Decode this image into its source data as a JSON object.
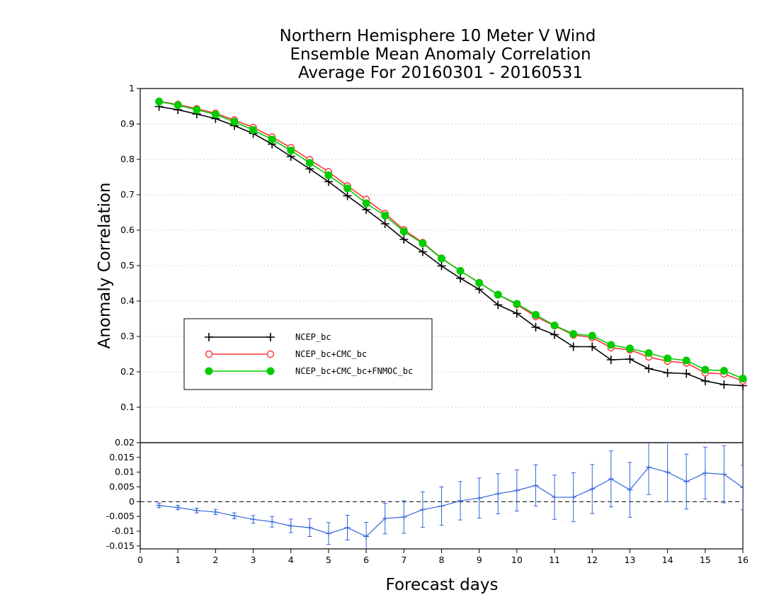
{
  "title": {
    "line1": "Northern Hemisphere 10 Meter V Wind",
    "line2": "Ensemble Mean Anomaly Correlation",
    "line3": "Average For 20160301 - 20160531"
  },
  "colors": {
    "ncep": "#000000",
    "ncep_cmc": "#ff3333",
    "ncep_cmc_fnmoc": "#00cc00",
    "diff": "#3366dd"
  },
  "chart_data": [
    {
      "type": "line",
      "title": "Northern Hemisphere 10 Meter V Wind Ensemble Mean Anomaly Correlation Average For 20160301 - 20160531",
      "xlabel": "Forecast days",
      "ylabel": "Anomaly Correlation",
      "xlim": [
        0,
        16
      ],
      "ylim": [
        0,
        1
      ],
      "yticks": [
        "0.1",
        "0.2",
        "0.3",
        "0.4",
        "0.5",
        "0.6",
        "0.7",
        "0.8",
        "0.9",
        "1"
      ],
      "grid": true,
      "legend_position": "left-middle",
      "x": [
        0.5,
        1,
        1.5,
        2,
        2.5,
        3,
        3.5,
        4,
        4.5,
        5,
        5.5,
        6,
        6.5,
        7,
        7.5,
        8,
        8.5,
        9,
        9.5,
        10,
        10.5,
        11,
        11.5,
        12,
        12.5,
        13,
        13.5,
        14,
        14.5,
        15,
        15.5,
        16
      ],
      "series": [
        {
          "name": "NCEP_bc",
          "marker": "plus",
          "values": [
            0.949,
            0.94,
            0.928,
            0.915,
            0.895,
            0.873,
            0.843,
            0.808,
            0.773,
            0.737,
            0.697,
            0.658,
            0.618,
            0.574,
            0.539,
            0.499,
            0.464,
            0.433,
            0.389,
            0.365,
            0.326,
            0.305,
            0.271,
            0.271,
            0.234,
            0.236,
            0.209,
            0.197,
            0.195,
            0.174,
            0.164,
            0.161
          ]
        },
        {
          "name": "NCEP_bc+CMC_bc",
          "marker": "circle",
          "values": [
            0.964,
            0.955,
            0.943,
            0.93,
            0.911,
            0.89,
            0.863,
            0.833,
            0.799,
            0.765,
            0.725,
            0.687,
            0.647,
            0.601,
            0.565,
            0.521,
            0.485,
            0.452,
            0.418,
            0.39,
            0.356,
            0.33,
            0.304,
            0.297,
            0.268,
            0.262,
            0.242,
            0.23,
            0.225,
            0.197,
            0.194,
            0.174
          ]
        },
        {
          "name": "NCEP_bc+CMC_bc+FNMOC_bc",
          "marker": "dot",
          "values": [
            0.963,
            0.953,
            0.94,
            0.927,
            0.906,
            0.883,
            0.856,
            0.825,
            0.79,
            0.755,
            0.718,
            0.676,
            0.641,
            0.596,
            0.563,
            0.52,
            0.485,
            0.451,
            0.418,
            0.392,
            0.361,
            0.331,
            0.307,
            0.302,
            0.276,
            0.266,
            0.253,
            0.238,
            0.232,
            0.206,
            0.203,
            0.181
          ]
        }
      ]
    },
    {
      "type": "line",
      "xlabel": "Forecast days",
      "xlim": [
        0,
        16
      ],
      "ylim": [
        -0.016,
        0.02
      ],
      "yticks": [
        "-0.015",
        "-0.01",
        "-0.005",
        "0",
        "0.005",
        "0.01",
        "0.015",
        "0.02"
      ],
      "xticks": [
        "0",
        "1",
        "2",
        "3",
        "4",
        "5",
        "6",
        "7",
        "8",
        "9",
        "10",
        "11",
        "12",
        "13",
        "14",
        "15",
        "16"
      ],
      "zero_line": "dashed",
      "x": [
        0.5,
        1,
        1.5,
        2,
        2.5,
        3,
        3.5,
        4,
        4.5,
        5,
        5.5,
        6,
        6.5,
        7,
        7.5,
        8,
        8.5,
        9,
        9.5,
        10,
        10.5,
        11,
        11.5,
        12,
        12.5,
        13,
        13.5,
        14,
        14.5,
        15,
        15.5,
        16
      ],
      "series": [
        {
          "marker": "errorbar",
          "values": [
            -0.0013,
            -0.002,
            -0.003,
            -0.0035,
            -0.0048,
            -0.006,
            -0.0068,
            -0.0082,
            -0.0088,
            -0.0108,
            -0.0088,
            -0.0118,
            -0.0057,
            -0.0052,
            -0.0027,
            -0.0015,
            0.0003,
            0.0012,
            0.0027,
            0.0038,
            0.0055,
            0.0015,
            0.0015,
            0.0043,
            0.0077,
            0.004,
            0.0117,
            0.01,
            0.0068,
            0.0097,
            0.0093,
            0.0048
          ],
          "err": [
            0.0007,
            0.0007,
            0.0008,
            0.0009,
            0.001,
            0.0013,
            0.0018,
            0.0023,
            0.003,
            0.0037,
            0.0042,
            0.0048,
            0.0052,
            0.0055,
            0.006,
            0.0065,
            0.0065,
            0.0068,
            0.0068,
            0.007,
            0.007,
            0.0075,
            0.0083,
            0.0083,
            0.0095,
            0.0093,
            0.0093,
            0.01,
            0.0093,
            0.0088,
            0.0097,
            0.0075
          ]
        }
      ]
    }
  ]
}
